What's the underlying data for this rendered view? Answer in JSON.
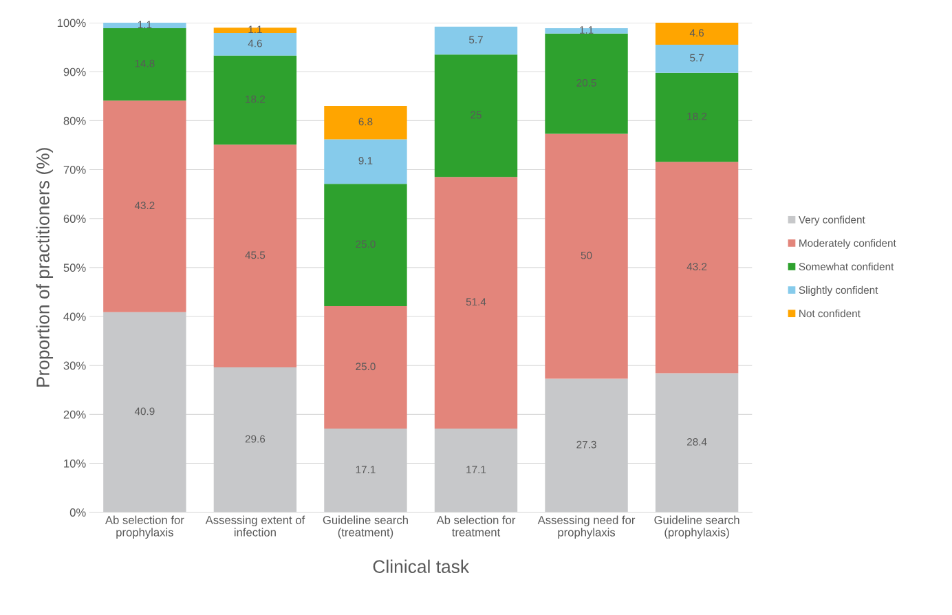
{
  "chart_data": {
    "type": "bar",
    "stacked": true,
    "xlabel": "Clinical task",
    "ylabel": "Proportion of practitioners (%)",
    "categories": [
      "Ab selection for\nprophylaxis",
      "Assessing extent of\ninfection",
      "Guideline search\n(treatment)",
      "Ab selection for\ntreatment",
      "Assessing need for\nprophylaxis",
      "Guideline search\n(prophylaxis)"
    ],
    "series": [
      {
        "name": "Very confident",
        "color": "#c7c8ca",
        "values": [
          40.9,
          29.6,
          17.1,
          17.1,
          27.3,
          28.4
        ],
        "value_labels": [
          "40.9",
          "29.6",
          "17.1",
          "17.1",
          "27.3",
          "28.4"
        ]
      },
      {
        "name": "Moderately confident",
        "color": "#e3857b",
        "values": [
          43.2,
          45.5,
          25.0,
          51.4,
          50,
          43.2
        ],
        "value_labels": [
          "43.2",
          "45.5",
          "25.0",
          "51.4",
          "50",
          "43.2"
        ]
      },
      {
        "name": "Somewhat confident",
        "color": "#2ea12e",
        "values": [
          14.8,
          18.2,
          25.0,
          25,
          20.5,
          18.2
        ],
        "value_labels": [
          "14.8",
          "18.2",
          "25.0",
          "25",
          "20.5",
          "18.2"
        ]
      },
      {
        "name": "Slightly confident",
        "color": "#86cbeb",
        "values": [
          1.1,
          4.6,
          9.1,
          5.7,
          1.1,
          5.7
        ],
        "value_labels": [
          "1.1",
          "4.6",
          "9.1",
          "5.7",
          "1.1",
          "5.7"
        ]
      },
      {
        "name": "Not confident",
        "color": "#ffa500",
        "values": [
          null,
          1.1,
          6.8,
          null,
          null,
          4.6
        ],
        "value_labels": [
          null,
          "1.1",
          "6.8",
          null,
          null,
          "4.6"
        ]
      }
    ],
    "ylim": [
      0,
      100
    ],
    "yticks": [
      {
        "value": 0,
        "label": "0%"
      },
      {
        "value": 10,
        "label": "10%"
      },
      {
        "value": 20,
        "label": "20%"
      },
      {
        "value": 30,
        "label": "30%"
      },
      {
        "value": 40,
        "label": "40%"
      },
      {
        "value": 50,
        "label": "50%"
      },
      {
        "value": 60,
        "label": "60%"
      },
      {
        "value": 70,
        "label": "70%"
      },
      {
        "value": 80,
        "label": "80%"
      },
      {
        "value": 90,
        "label": "90%"
      },
      {
        "value": 100,
        "label": "100%"
      }
    ],
    "grid": "y",
    "legend": "right"
  }
}
